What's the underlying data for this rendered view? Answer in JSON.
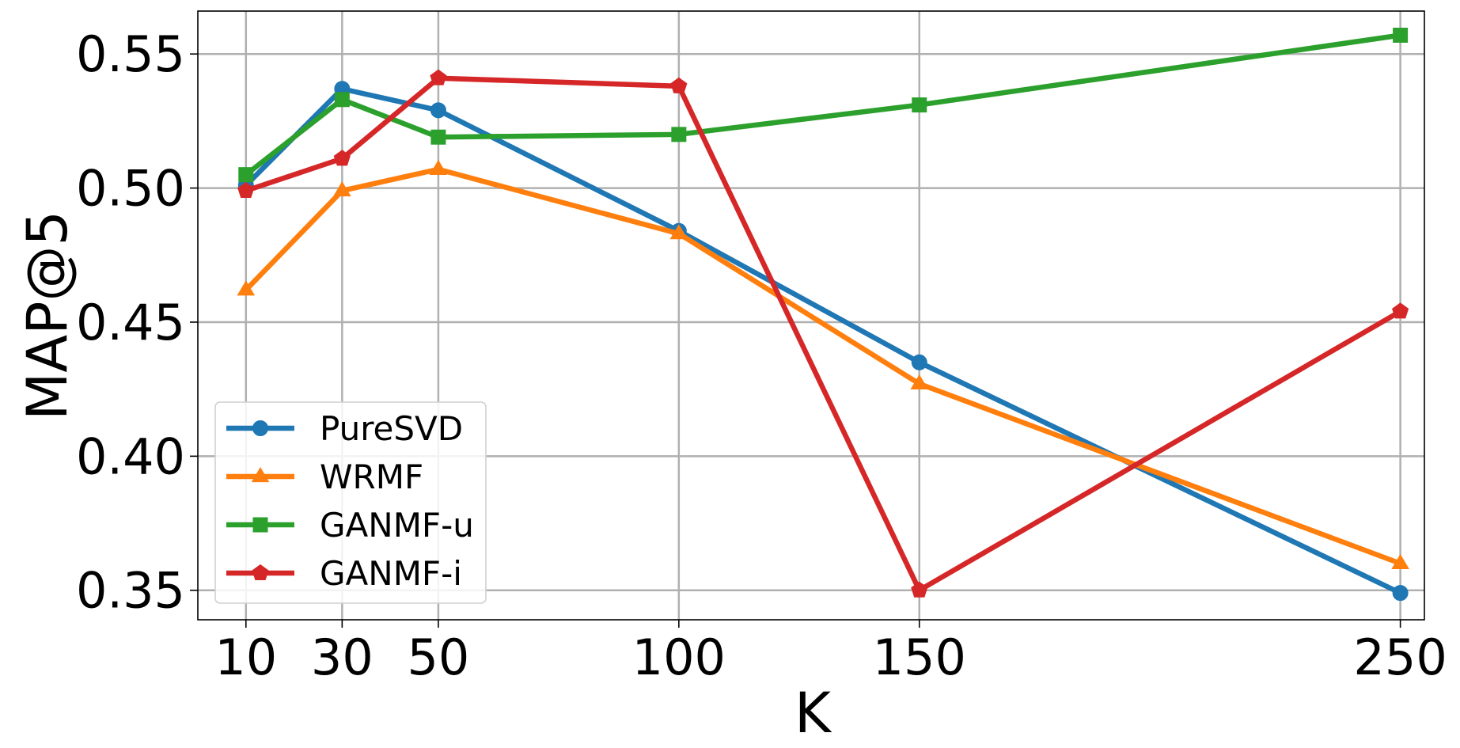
{
  "chart_data": {
    "type": "line",
    "title": "",
    "xlabel": "K",
    "ylabel": "MAP@5",
    "x": [
      10,
      30,
      50,
      100,
      150,
      250
    ],
    "xticks": [
      10,
      30,
      50,
      100,
      150,
      250
    ],
    "xtick_labels": [
      "10",
      "30",
      "50",
      "100",
      "150",
      "250"
    ],
    "xlim": [
      0,
      255
    ],
    "ylim": [
      0.339,
      0.566
    ],
    "yticks": [
      0.35,
      0.4,
      0.45,
      0.5,
      0.55
    ],
    "ytick_labels": [
      "0.35",
      "0.40",
      "0.45",
      "0.50",
      "0.55"
    ],
    "grid": true,
    "legend_position": "lower-left",
    "series": [
      {
        "name": "PureSVD",
        "color": "#1f77b4",
        "marker": "circle",
        "values": [
          0.501,
          0.537,
          0.529,
          0.484,
          0.435,
          0.349
        ]
      },
      {
        "name": "WRMF",
        "color": "#ff7f0e",
        "marker": "triangle",
        "values": [
          0.462,
          0.499,
          0.507,
          0.483,
          0.427,
          0.36
        ]
      },
      {
        "name": "GANMF-u",
        "color": "#2ca02c",
        "marker": "square",
        "values": [
          0.505,
          0.533,
          0.519,
          0.52,
          0.531,
          0.557
        ]
      },
      {
        "name": "GANMF-i",
        "color": "#d62728",
        "marker": "pentagon",
        "values": [
          0.499,
          0.511,
          0.541,
          0.538,
          0.35,
          0.454
        ]
      }
    ]
  }
}
